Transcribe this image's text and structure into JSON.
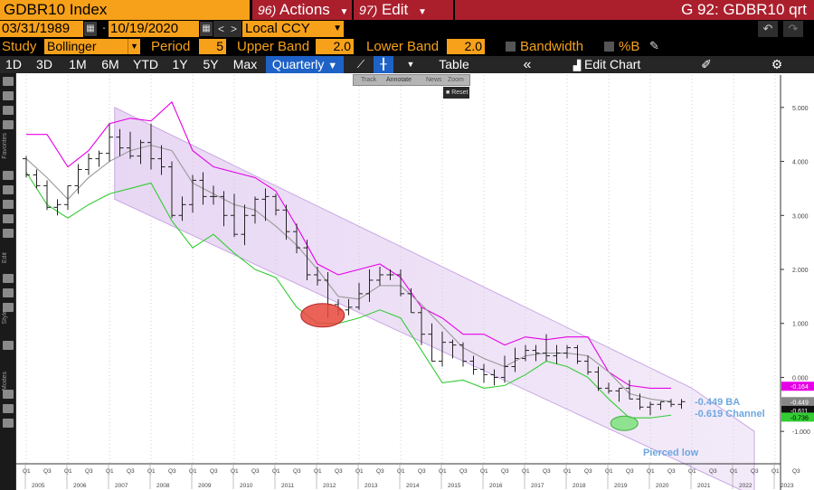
{
  "header": {
    "security_title": "GDBR10 Index",
    "actions_num": "96)",
    "actions_label": "Actions",
    "edit_num": "97)",
    "edit_label": "Edit",
    "function_title": "G 92: GDBR10 qrt"
  },
  "dates": {
    "start": "03/31/1989",
    "end": "10/19/2020",
    "currency": "Local CCY"
  },
  "study": {
    "study_label": "Study",
    "study_value": "Bollinger",
    "period_label": "Period",
    "period_value": "5",
    "upper_label": "Upper Band",
    "upper_value": "2.0",
    "lower_label": "Lower Band",
    "lower_value": "2.0",
    "bandwidth_label": "Bandwidth",
    "percent_b_label": "%B"
  },
  "toolbar": {
    "periods": [
      "1D",
      "3D",
      "1M",
      "6M",
      "YTD",
      "1Y",
      "5Y",
      "Max"
    ],
    "frequency": "Quarterly",
    "table_label": "Table",
    "edit_chart_label": "Edit Chart"
  },
  "float_toolbar": {
    "items": [
      "Track",
      "Annotate",
      "News",
      "Zoom"
    ],
    "reset": "Reset"
  },
  "left_tool_labels": [
    "Favorites",
    "Edit",
    "Style",
    "Modes"
  ],
  "annotations": {
    "ba_label": "-0.449 BA",
    "channel_label": "-0.619 Channel",
    "pierced_low": "Pierced low"
  },
  "price_tags": {
    "upper": "-0.164",
    "last": "-0.449",
    "mid": "-0.611",
    "lower": "-0.736"
  },
  "colors": {
    "bloomberg_orange": "#f7a11a",
    "menu_red": "#ab1f2d",
    "upper_band": "#e600e6",
    "lower_band": "#33cc33",
    "middle_band": "#999999",
    "channel_fill": "#e4d0f2",
    "annotation_blue": "#6ea7e0",
    "highlight_red": "#e8473c",
    "highlight_green": "#7ee07e",
    "active_blue": "#1e62c7"
  },
  "chart_data": {
    "type": "bar",
    "subtype": "ohlc-with-bollinger",
    "title": "",
    "xlabel": "",
    "ylabel": "",
    "ylim": [
      -1.6,
      5.6
    ],
    "y_ticks": [
      "5.000",
      "4.000",
      "3.000",
      "2.000",
      "1.000",
      "0.000",
      "-1.000"
    ],
    "x_years": [
      "2005",
      "2006",
      "2007",
      "2008",
      "2009",
      "2010",
      "2011",
      "2012",
      "2013",
      "2014",
      "2015",
      "2016",
      "2017",
      "2018",
      "2019",
      "2020",
      "2021",
      "2022",
      "2023"
    ],
    "x_quarter_ticks": [
      "Q1",
      "Q3"
    ],
    "series": [
      {
        "name": "GDBR10 Index",
        "t": [
          0,
          1,
          2,
          3,
          4,
          5,
          6,
          7,
          8,
          9,
          10,
          11,
          12,
          13,
          14,
          15,
          16,
          17,
          18,
          19,
          20,
          21,
          22,
          23,
          24,
          25,
          26,
          27,
          28,
          29,
          30,
          31,
          32,
          33,
          34,
          35,
          36,
          37,
          38,
          39,
          40,
          41,
          42,
          43,
          44,
          45,
          46,
          47,
          48,
          49,
          50,
          51,
          52,
          53,
          54,
          55,
          56,
          57,
          58,
          59,
          60,
          61,
          62,
          63
        ],
        "open": [
          4.05,
          3.75,
          3.55,
          3.15,
          3.2,
          3.55,
          3.85,
          4.05,
          4.15,
          4.45,
          4.25,
          4.1,
          4.35,
          4.05,
          3.9,
          3.0,
          3.2,
          3.65,
          3.35,
          3.35,
          3.0,
          2.65,
          3.0,
          3.3,
          3.35,
          3.1,
          2.7,
          2.4,
          1.9,
          1.8,
          1.35,
          1.25,
          1.3,
          1.55,
          1.8,
          1.9,
          1.9,
          1.55,
          1.2,
          0.8,
          0.3,
          0.65,
          0.6,
          0.3,
          0.15,
          0.05,
          0.0,
          0.2,
          0.35,
          0.5,
          0.45,
          0.4,
          0.45,
          0.55,
          0.3,
          0.1,
          -0.2,
          -0.25,
          -0.2,
          -0.4,
          -0.55,
          -0.5,
          -0.45,
          -0.5
        ],
        "high": [
          4.1,
          3.85,
          3.65,
          3.3,
          3.55,
          3.95,
          4.15,
          4.2,
          4.7,
          4.6,
          4.55,
          4.4,
          4.7,
          4.3,
          4.0,
          3.35,
          3.75,
          3.8,
          3.55,
          3.45,
          3.4,
          3.2,
          3.35,
          3.5,
          3.4,
          3.2,
          2.85,
          2.55,
          2.05,
          1.95,
          1.45,
          1.45,
          1.75,
          2.0,
          2.05,
          2.0,
          2.0,
          1.65,
          1.3,
          1.0,
          0.85,
          0.7,
          0.65,
          0.4,
          0.25,
          0.15,
          0.4,
          0.55,
          0.6,
          0.6,
          0.8,
          0.6,
          0.6,
          0.6,
          0.4,
          0.2,
          -0.1,
          -0.2,
          -0.05,
          -0.3,
          -0.45,
          -0.45,
          -0.4,
          -0.4
        ],
        "low": [
          3.7,
          3.5,
          3.1,
          3.0,
          3.1,
          3.4,
          3.75,
          3.9,
          4.0,
          4.1,
          4.05,
          3.95,
          3.85,
          3.75,
          2.95,
          2.9,
          3.05,
          3.2,
          3.2,
          2.8,
          2.6,
          2.45,
          2.85,
          2.9,
          3.0,
          2.55,
          2.3,
          1.8,
          1.7,
          1.1,
          1.15,
          1.15,
          1.25,
          1.4,
          1.7,
          1.8,
          1.5,
          1.2,
          0.6,
          0.3,
          0.2,
          0.35,
          0.2,
          0.05,
          -0.1,
          -0.15,
          -0.1,
          0.1,
          0.3,
          0.3,
          0.3,
          0.25,
          0.35,
          0.25,
          0.05,
          -0.25,
          -0.3,
          -0.45,
          -0.4,
          -0.6,
          -0.7,
          -0.6,
          -0.55,
          -0.58
        ],
        "close": [
          3.75,
          3.55,
          3.15,
          3.2,
          3.55,
          3.85,
          4.05,
          4.15,
          4.45,
          4.25,
          4.1,
          4.35,
          4.05,
          3.9,
          3.0,
          3.2,
          3.65,
          3.35,
          3.35,
          3.0,
          2.65,
          3.0,
          3.3,
          3.35,
          3.1,
          2.7,
          2.4,
          1.9,
          1.8,
          1.35,
          1.25,
          1.3,
          1.55,
          1.8,
          1.9,
          1.9,
          1.55,
          1.2,
          0.8,
          0.3,
          0.65,
          0.6,
          0.3,
          0.15,
          0.05,
          0.0,
          0.2,
          0.35,
          0.5,
          0.45,
          0.4,
          0.45,
          0.55,
          0.3,
          0.1,
          -0.2,
          -0.25,
          -0.2,
          -0.4,
          -0.55,
          -0.5,
          -0.45,
          -0.5,
          -0.45
        ]
      },
      {
        "name": "Upper Band",
        "t": [
          0,
          2,
          4,
          6,
          8,
          10,
          12,
          14,
          16,
          18,
          20,
          22,
          24,
          26,
          28,
          30,
          32,
          34,
          36,
          38,
          40,
          42,
          44,
          46,
          48,
          50,
          52,
          54,
          56,
          58,
          60,
          62
        ],
        "values": [
          4.5,
          4.5,
          3.9,
          4.2,
          4.7,
          4.8,
          4.75,
          5.1,
          4.2,
          3.9,
          3.8,
          3.7,
          3.45,
          2.8,
          2.1,
          1.9,
          2.0,
          2.1,
          1.85,
          1.3,
          1.1,
          0.8,
          0.8,
          0.6,
          0.75,
          0.7,
          0.75,
          0.75,
          0.1,
          -0.15,
          -0.2,
          -0.2
        ]
      },
      {
        "name": "Middle Band",
        "t": [
          0,
          2,
          4,
          6,
          8,
          10,
          12,
          14,
          16,
          18,
          20,
          22,
          24,
          26,
          28,
          30,
          32,
          34,
          36,
          38,
          40,
          42,
          44,
          46,
          48,
          50,
          52,
          54,
          56,
          58,
          60,
          62
        ],
        "values": [
          4.05,
          3.7,
          3.3,
          3.7,
          4.0,
          4.2,
          4.3,
          4.2,
          3.6,
          3.4,
          3.2,
          3.1,
          2.8,
          2.45,
          2.0,
          1.5,
          1.45,
          1.7,
          1.7,
          1.35,
          0.95,
          0.55,
          0.35,
          0.2,
          0.4,
          0.45,
          0.45,
          0.4,
          0.1,
          -0.3,
          -0.4,
          -0.45
        ]
      },
      {
        "name": "Lower Band",
        "t": [
          0,
          2,
          4,
          6,
          8,
          10,
          12,
          14,
          16,
          18,
          20,
          22,
          24,
          26,
          28,
          30,
          32,
          34,
          36,
          38,
          40,
          42,
          44,
          46,
          48,
          50,
          52,
          54,
          56,
          58,
          60,
          62
        ],
        "values": [
          3.8,
          3.2,
          2.95,
          3.2,
          3.4,
          3.5,
          3.6,
          2.9,
          2.4,
          2.65,
          2.3,
          2.0,
          1.85,
          1.3,
          1.0,
          1.0,
          1.1,
          1.25,
          1.1,
          0.5,
          -0.1,
          -0.05,
          -0.2,
          -0.15,
          0.05,
          0.3,
          0.2,
          0.0,
          -0.4,
          -0.75,
          -0.75,
          -0.7
        ]
      }
    ],
    "channel": {
      "upper": [
        [
          8.5,
          5.0
        ],
        [
          64,
          -0.2
        ],
        [
          70,
          -1.0
        ]
      ],
      "lower": [
        [
          8.5,
          3.3
        ],
        [
          70,
          -2.2
        ]
      ]
    },
    "highlights": [
      {
        "label": "",
        "t": 28.5,
        "y": 1.15,
        "color": "red"
      },
      {
        "label": "Pierced low",
        "t": 57.5,
        "y": -0.85,
        "color": "green"
      }
    ]
  }
}
